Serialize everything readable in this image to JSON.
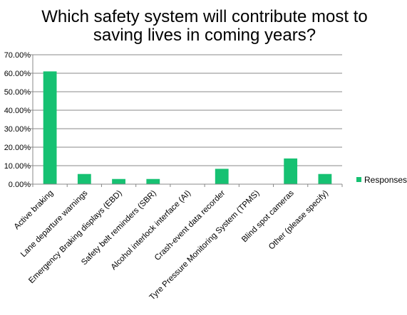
{
  "chart_data": {
    "type": "bar",
    "title": "Which safety system will contribute most to saving lives in coming years?",
    "title_lines": [
      "Which safety system will contribute most to",
      "saving lives in coming years?"
    ],
    "categories": [
      "Active braking",
      "Lane departure warnings",
      "Emergency Braking displays (EBD)",
      "Safety belt reminders (SBR)",
      "Alcohol interlock interface (AI)",
      "Crash-event data recorder",
      "Tyre Pressure Monitoring System (TPMS)",
      "Blind spot cameras",
      "Other (please specify)"
    ],
    "series": [
      {
        "name": "Responses",
        "values": [
          61.0,
          5.5,
          2.8,
          2.8,
          0.0,
          8.3,
          0.0,
          13.9,
          5.5
        ],
        "color": "#16c172"
      }
    ],
    "y_ticks": [
      "0.00%",
      "10.00%",
      "20.00%",
      "30.00%",
      "40.00%",
      "50.00%",
      "60.00%",
      "70.00%"
    ],
    "ylim": [
      0,
      70
    ],
    "y_unit": "%",
    "grid": true,
    "legend_position": "right",
    "grid_color": "#888888"
  }
}
